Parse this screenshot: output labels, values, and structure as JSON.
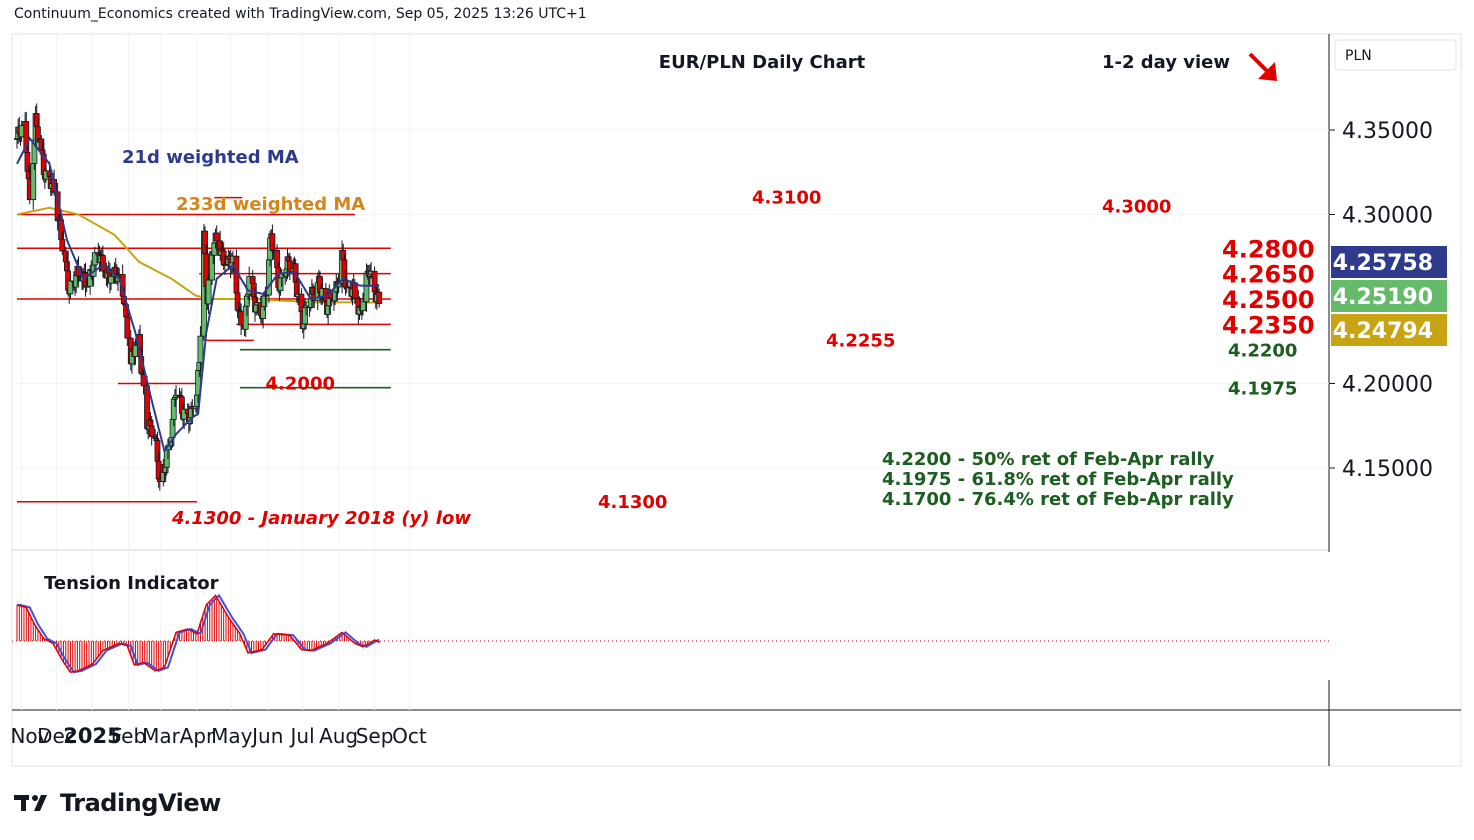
{
  "header": {
    "attribution": "Continuum_Economics created with TradingView.com, Sep 05, 2025 13:26 UTC+1"
  },
  "footer": {
    "brand": "TradingView"
  },
  "chart_data": {
    "type": "candlestick",
    "title": "EUR/PLN Daily Chart",
    "view_label": "1-2 day view",
    "view_direction": "down",
    "currency": "PLN",
    "ylim": [
      4.105,
      4.385
    ],
    "y_ticks": [
      "4.35000",
      "4.30000",
      "4.20000",
      "4.15000"
    ],
    "x_tick_labels": [
      {
        "label": "Nov",
        "date": "2024-11-01",
        "bold": false
      },
      {
        "label": "Dec",
        "date": "2024-12-01",
        "bold": false
      },
      {
        "label": "2025",
        "date": "2025-01-01",
        "bold": true
      },
      {
        "label": "Feb",
        "date": "2025-02-01",
        "bold": false
      },
      {
        "label": "Mar",
        "date": "2025-03-01",
        "bold": false
      },
      {
        "label": "Apr",
        "date": "2025-04-01",
        "bold": false
      },
      {
        "label": "May",
        "date": "2025-05-01",
        "bold": false
      },
      {
        "label": "Jun",
        "date": "2025-06-01",
        "bold": false
      },
      {
        "label": "Jul",
        "date": "2025-07-01",
        "bold": false
      },
      {
        "label": "Aug",
        "date": "2025-08-01",
        "bold": false
      },
      {
        "label": "Sep",
        "date": "2025-09-01",
        "bold": false
      },
      {
        "label": "Oct",
        "date": "2025-10-01",
        "bold": false
      }
    ],
    "price_badges": [
      {
        "value": "4.25758",
        "series": "21d weighted MA",
        "color": "#2e3b8c"
      },
      {
        "value": "4.25190",
        "series": "last price",
        "color": "#66bb6a"
      },
      {
        "value": "4.24794",
        "series": "233d weighted MA",
        "color": "#c8a415"
      }
    ],
    "levels": [
      {
        "label": "4.3100",
        "value": 4.31,
        "from": "2025-04-16",
        "to": "2025-05-10",
        "color": "#e00000",
        "size": "normal"
      },
      {
        "label": "4.3000",
        "value": 4.3,
        "from": "2024-10-28",
        "to": "2025-08-15",
        "color": "#e00000",
        "size": "normal"
      },
      {
        "label": "4.2800",
        "value": 4.28,
        "from": "2024-10-28",
        "to": "2025-09-15",
        "color": "#e00000",
        "size": "large"
      },
      {
        "label": "4.2650",
        "value": 4.265,
        "from": "2025-04-03",
        "to": "2025-09-15",
        "color": "#e00000",
        "size": "large"
      },
      {
        "label": "4.2500",
        "value": 4.25,
        "from": "2024-10-28",
        "to": "2025-09-15",
        "color": "#e00000",
        "size": "large"
      },
      {
        "label": "4.2350",
        "value": 4.235,
        "from": "2025-05-05",
        "to": "2025-09-15",
        "color": "#e00000",
        "size": "large"
      },
      {
        "label": "4.2255",
        "value": 4.2255,
        "from": "2025-04-09",
        "to": "2025-05-20",
        "color": "#e00000",
        "size": "normal"
      },
      {
        "label": "4.2200",
        "value": 4.22,
        "from": "2025-05-08",
        "to": "2025-09-15",
        "color": "#1b5e20",
        "size": "normal"
      },
      {
        "label": "4.1975",
        "value": 4.1975,
        "from": "2025-05-08",
        "to": "2025-09-15",
        "color": "#1b5e20",
        "size": "normal"
      },
      {
        "label": "4.2000",
        "value": 4.2,
        "from": "2025-01-23",
        "to": "2025-04-03",
        "color": "#e00000",
        "size": "normal",
        "label_side": "left"
      },
      {
        "label": "4.1300",
        "value": 4.13,
        "from": "2024-10-28",
        "to": "2025-04-01",
        "color": "#e00000",
        "size": "normal"
      }
    ],
    "annotations": [
      {
        "text": "21d weighted MA",
        "color": "#2e3b8c"
      },
      {
        "text": "233d weighted MA",
        "color": "#d4861a"
      },
      {
        "text": "4.1300 - January 2018 (y) low",
        "color": "#e00000",
        "italic": true
      },
      {
        "text": "4.2200 - 50% ret of Feb-Apr rally",
        "color": "#1b5e20"
      },
      {
        "text": "4.1975 - 61.8% ret of Feb-Apr rally",
        "color": "#1b5e20"
      },
      {
        "text": "4.1700 - 76.4% ret of Feb-Apr rally",
        "color": "#1b5e20"
      }
    ],
    "price_anchors": [
      {
        "date": "2024-10-28",
        "close": 4.345
      },
      {
        "date": "2024-11-04",
        "close": 4.35
      },
      {
        "date": "2024-11-08",
        "close": 4.31
      },
      {
        "date": "2024-11-13",
        "close": 4.355
      },
      {
        "date": "2024-11-20",
        "close": 4.325
      },
      {
        "date": "2024-11-27",
        "close": 4.322
      },
      {
        "date": "2024-12-05",
        "close": 4.285
      },
      {
        "date": "2024-12-12",
        "close": 4.258
      },
      {
        "date": "2024-12-19",
        "close": 4.262
      },
      {
        "date": "2024-12-27",
        "close": 4.263
      },
      {
        "date": "2025-01-06",
        "close": 4.274
      },
      {
        "date": "2025-01-15",
        "close": 4.266
      },
      {
        "date": "2025-01-22",
        "close": 4.262
      },
      {
        "date": "2025-01-28",
        "close": 4.252
      },
      {
        "date": "2025-02-03",
        "close": 4.215
      },
      {
        "date": "2025-02-10",
        "close": 4.222
      },
      {
        "date": "2025-02-17",
        "close": 4.18
      },
      {
        "date": "2025-02-24",
        "close": 4.165
      },
      {
        "date": "2025-02-28",
        "close": 4.14
      },
      {
        "date": "2025-03-03",
        "close": 4.15
      },
      {
        "date": "2025-03-10",
        "close": 4.172
      },
      {
        "date": "2025-03-14",
        "close": 4.195
      },
      {
        "date": "2025-03-20",
        "close": 4.185
      },
      {
        "date": "2025-03-27",
        "close": 4.18
      },
      {
        "date": "2025-04-01",
        "close": 4.19
      },
      {
        "date": "2025-04-03",
        "close": 4.215
      },
      {
        "date": "2025-04-07",
        "close": 4.29
      },
      {
        "date": "2025-04-10",
        "close": 4.25
      },
      {
        "date": "2025-04-14",
        "close": 4.275
      },
      {
        "date": "2025-04-18",
        "close": 4.285
      },
      {
        "date": "2025-04-25",
        "close": 4.275
      },
      {
        "date": "2025-05-02",
        "close": 4.268
      },
      {
        "date": "2025-05-07",
        "close": 4.242
      },
      {
        "date": "2025-05-12",
        "close": 4.238
      },
      {
        "date": "2025-05-16",
        "close": 4.262
      },
      {
        "date": "2025-05-21",
        "close": 4.245
      },
      {
        "date": "2025-05-28",
        "close": 4.245
      },
      {
        "date": "2025-06-04",
        "close": 4.285
      },
      {
        "date": "2025-06-10",
        "close": 4.26
      },
      {
        "date": "2025-06-17",
        "close": 4.27
      },
      {
        "date": "2025-06-24",
        "close": 4.265
      },
      {
        "date": "2025-07-01",
        "close": 4.238
      },
      {
        "date": "2025-07-08",
        "close": 4.248
      },
      {
        "date": "2025-07-15",
        "close": 4.262
      },
      {
        "date": "2025-07-22",
        "close": 4.243
      },
      {
        "date": "2025-07-29",
        "close": 4.254
      },
      {
        "date": "2025-08-04",
        "close": 4.278
      },
      {
        "date": "2025-08-08",
        "close": 4.25
      },
      {
        "date": "2025-08-14",
        "close": 4.256
      },
      {
        "date": "2025-08-20",
        "close": 4.244
      },
      {
        "date": "2025-08-27",
        "close": 4.265
      },
      {
        "date": "2025-09-01",
        "close": 4.256
      },
      {
        "date": "2025-09-05",
        "close": 4.2519
      }
    ],
    "ma21_anchors": [
      {
        "date": "2024-10-28",
        "value": 4.33
      },
      {
        "date": "2024-11-08",
        "value": 4.345
      },
      {
        "date": "2024-11-25",
        "value": 4.33
      },
      {
        "date": "2024-12-10",
        "value": 4.285
      },
      {
        "date": "2024-12-24",
        "value": 4.262
      },
      {
        "date": "2025-01-10",
        "value": 4.27
      },
      {
        "date": "2025-01-24",
        "value": 4.262
      },
      {
        "date": "2025-02-07",
        "value": 4.23
      },
      {
        "date": "2025-02-21",
        "value": 4.19
      },
      {
        "date": "2025-03-04",
        "value": 4.16
      },
      {
        "date": "2025-03-14",
        "value": 4.17
      },
      {
        "date": "2025-03-28",
        "value": 4.18
      },
      {
        "date": "2025-04-02",
        "value": 4.182
      },
      {
        "date": "2025-04-09",
        "value": 4.23
      },
      {
        "date": "2025-04-18",
        "value": 4.262
      },
      {
        "date": "2025-05-02",
        "value": 4.27
      },
      {
        "date": "2025-05-15",
        "value": 4.255
      },
      {
        "date": "2025-05-28",
        "value": 4.253
      },
      {
        "date": "2025-06-10",
        "value": 4.265
      },
      {
        "date": "2025-06-24",
        "value": 4.266
      },
      {
        "date": "2025-07-08",
        "value": 4.25
      },
      {
        "date": "2025-07-22",
        "value": 4.252
      },
      {
        "date": "2025-08-05",
        "value": 4.262
      },
      {
        "date": "2025-08-19",
        "value": 4.258
      },
      {
        "date": "2025-09-05",
        "value": 4.2576
      }
    ],
    "ma233_anchors": [
      {
        "date": "2024-10-28",
        "value": 4.3
      },
      {
        "date": "2024-11-25",
        "value": 4.304
      },
      {
        "date": "2024-12-20",
        "value": 4.3
      },
      {
        "date": "2025-01-20",
        "value": 4.288
      },
      {
        "date": "2025-02-10",
        "value": 4.272
      },
      {
        "date": "2025-03-10",
        "value": 4.262
      },
      {
        "date": "2025-03-31",
        "value": 4.252
      },
      {
        "date": "2025-04-15",
        "value": 4.25
      },
      {
        "date": "2025-05-15",
        "value": 4.25
      },
      {
        "date": "2025-06-15",
        "value": 4.249
      },
      {
        "date": "2025-07-15",
        "value": 4.248
      },
      {
        "date": "2025-08-15",
        "value": 4.248
      },
      {
        "date": "2025-09-05",
        "value": 4.2479
      }
    ],
    "indicator": {
      "name": "Tension Indicator",
      "ylim": [
        -1.0,
        1.0
      ],
      "zero_line": 0,
      "anchors": [
        {
          "date": "2024-10-28",
          "value": 0.75
        },
        {
          "date": "2024-11-05",
          "value": 0.7
        },
        {
          "date": "2024-11-12",
          "value": 0.35
        },
        {
          "date": "2024-11-20",
          "value": 0.05
        },
        {
          "date": "2024-11-28",
          "value": -0.05
        },
        {
          "date": "2024-12-06",
          "value": -0.4
        },
        {
          "date": "2024-12-13",
          "value": -0.65
        },
        {
          "date": "2024-12-20",
          "value": -0.62
        },
        {
          "date": "2025-01-01",
          "value": -0.48
        },
        {
          "date": "2025-01-10",
          "value": -0.2
        },
        {
          "date": "2025-01-24",
          "value": -0.05
        },
        {
          "date": "2025-01-31",
          "value": -0.1
        },
        {
          "date": "2025-02-06",
          "value": -0.5
        },
        {
          "date": "2025-02-14",
          "value": -0.45
        },
        {
          "date": "2025-02-24",
          "value": -0.62
        },
        {
          "date": "2025-03-04",
          "value": -0.55
        },
        {
          "date": "2025-03-14",
          "value": 0.18
        },
        {
          "date": "2025-03-24",
          "value": 0.25
        },
        {
          "date": "2025-04-01",
          "value": 0.15
        },
        {
          "date": "2025-04-09",
          "value": 0.75
        },
        {
          "date": "2025-04-17",
          "value": 0.95
        },
        {
          "date": "2025-04-28",
          "value": 0.5
        },
        {
          "date": "2025-05-08",
          "value": 0.15
        },
        {
          "date": "2025-05-15",
          "value": -0.25
        },
        {
          "date": "2025-05-27",
          "value": -0.18
        },
        {
          "date": "2025-06-06",
          "value": 0.15
        },
        {
          "date": "2025-06-20",
          "value": 0.12
        },
        {
          "date": "2025-06-30",
          "value": -0.18
        },
        {
          "date": "2025-07-08",
          "value": -0.2
        },
        {
          "date": "2025-07-22",
          "value": -0.05
        },
        {
          "date": "2025-08-04",
          "value": 0.18
        },
        {
          "date": "2025-08-15",
          "value": -0.05
        },
        {
          "date": "2025-08-22",
          "value": -0.12
        },
        {
          "date": "2025-09-01",
          "value": 0.02
        },
        {
          "date": "2025-09-05",
          "value": -0.03
        }
      ]
    }
  }
}
